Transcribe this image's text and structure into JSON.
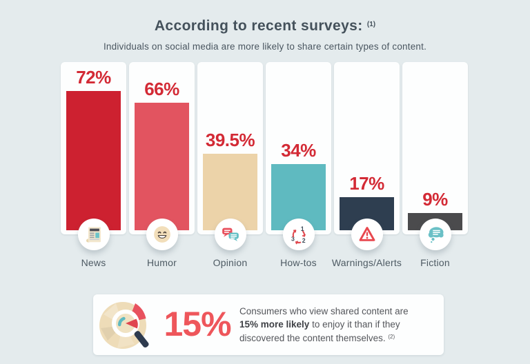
{
  "page": {
    "title": "According to recent surveys:",
    "title_superscript": "(1)",
    "subtitle": "Individuals on social media are more likely to share certain types of content."
  },
  "chart_data": {
    "type": "bar",
    "title": "According to recent surveys: (1)",
    "subtitle": "Individuals on social media are more likely to share certain types of content.",
    "categories": [
      "News",
      "Humor",
      "Opinion",
      "How-tos",
      "Warnings/Alerts",
      "Fiction"
    ],
    "values": [
      72,
      66,
      39.5,
      34,
      17,
      9
    ],
    "value_labels": [
      "72%",
      "66%",
      "39.5%",
      "34%",
      "17%",
      "9%"
    ],
    "unit": "%",
    "ylim": [
      0,
      100
    ],
    "grid": false,
    "legend": false,
    "bar_colors": [
      "#cd2130",
      "#e25460",
      "#ecd3a9",
      "#5fbac0",
      "#2e3e50",
      "#4b4b4d"
    ],
    "value_label_color": "#d32a35",
    "icons": [
      "newspaper-icon",
      "smiley-face-icon",
      "speech-bubbles-icon",
      "numbered-steps-cycle-icon",
      "warning-triangle-icon",
      "thought-bubble-icon"
    ]
  },
  "footer": {
    "icon": "magnifier-pie-chart-icon",
    "stat_value": "15%",
    "line1": "Consumers who view shared content are",
    "line2_bold": "15% more likely",
    "line2_rest": " to enjoy it than if they",
    "line3": "discovered the content themselves.",
    "line3_superscript": "(2)"
  },
  "colors": {
    "background": "#e4ebed",
    "card": "#fdfefe",
    "title_text": "#44515b",
    "category_text": "#4d5a63",
    "stat_red": "#ee565b"
  }
}
